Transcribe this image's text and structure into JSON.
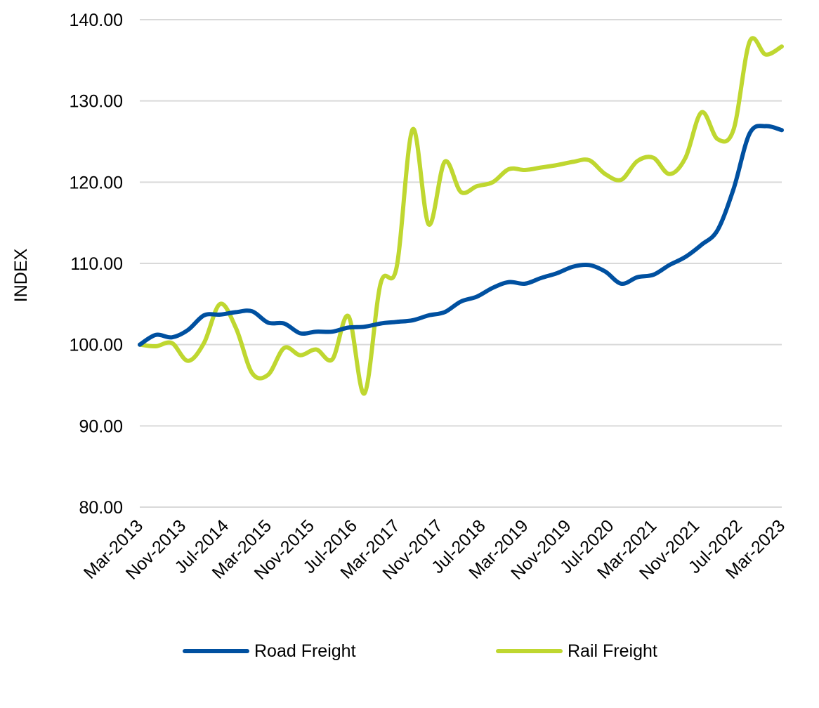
{
  "chart_data": {
    "type": "line",
    "title": "",
    "xlabel": "",
    "ylabel": "INDEX",
    "ylim": [
      80,
      140
    ],
    "y_ticks": [
      "80.00",
      "90.00",
      "100.00",
      "110.00",
      "120.00",
      "130.00",
      "140.00"
    ],
    "x_ticks": [
      "Mar-2013",
      "Nov-2013",
      "Jul-2014",
      "Mar-2015",
      "Nov-2015",
      "Jul-2016",
      "Mar-2017",
      "Nov-2017",
      "Jul-2018",
      "Mar-2019",
      "Nov-2019",
      "Jul-2020",
      "Mar-2021",
      "Nov-2021",
      "Jul-2022",
      "Mar-2023"
    ],
    "grid": "horizontal",
    "legend": "bottom",
    "x": [
      "Mar-2013",
      "Jun-2013",
      "Sep-2013",
      "Dec-2013",
      "Mar-2014",
      "Jun-2014",
      "Sep-2014",
      "Dec-2014",
      "Mar-2015",
      "Jun-2015",
      "Sep-2015",
      "Dec-2015",
      "Mar-2016",
      "Jun-2016",
      "Sep-2016",
      "Dec-2016",
      "Mar-2017",
      "Jun-2017",
      "Sep-2017",
      "Dec-2017",
      "Mar-2018",
      "Jun-2018",
      "Sep-2018",
      "Dec-2018",
      "Mar-2019",
      "Jun-2019",
      "Sep-2019",
      "Dec-2019",
      "Mar-2020",
      "Jun-2020",
      "Sep-2020",
      "Dec-2020",
      "Mar-2021",
      "Jun-2021",
      "Sep-2021",
      "Dec-2021",
      "Mar-2022",
      "Jun-2022",
      "Sep-2022",
      "Dec-2022",
      "Mar-2023"
    ],
    "series": [
      {
        "name": "Road Freight",
        "color": "#0050a0",
        "values": [
          100.0,
          101.2,
          100.9,
          101.8,
          103.6,
          103.7,
          104.0,
          104.1,
          102.7,
          102.6,
          101.4,
          101.6,
          101.6,
          102.1,
          102.2,
          102.6,
          102.8,
          103.0,
          103.6,
          104.0,
          105.3,
          105.9,
          107.0,
          107.7,
          107.5,
          108.2,
          108.8,
          109.6,
          109.8,
          109.0,
          107.5,
          108.3,
          108.6,
          109.8,
          110.8,
          112.3,
          114.1,
          119.2,
          126.0,
          126.9,
          126.4
        ]
      },
      {
        "name": "Rail Freight",
        "color": "#bfd730",
        "values": [
          100.0,
          99.8,
          100.2,
          98.0,
          100.2,
          105.0,
          102.0,
          96.5,
          96.3,
          99.6,
          98.7,
          99.4,
          98.2,
          103.5,
          94.0,
          107.5,
          109.5,
          126.5,
          114.8,
          122.5,
          118.8,
          119.5,
          120.0,
          121.6,
          121.5,
          121.8,
          122.1,
          122.5,
          122.7,
          121.0,
          120.3,
          122.6,
          123.0,
          121.0,
          123.0,
          128.6,
          125.3,
          126.5,
          137.3,
          135.7,
          136.7
        ]
      }
    ]
  }
}
